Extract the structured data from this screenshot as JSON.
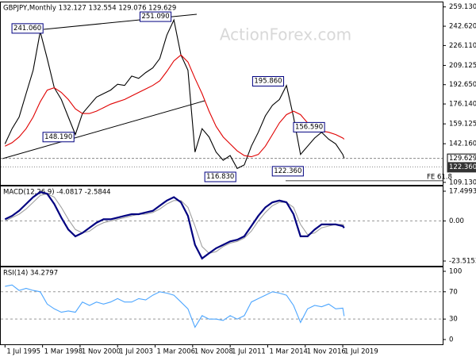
{
  "chart_data": [
    {
      "type": "line",
      "title": "GBPJPY,Monthly 132.127 132.554 129.076 129.629",
      "watermark": "ActionForex.com",
      "x": [
        1995.5,
        1996,
        1996.5,
        1997,
        1997.5,
        1998,
        1998.5,
        1999,
        1999.5,
        2000,
        2000.5,
        2001,
        2001.5,
        2002,
        2002.5,
        2003,
        2003.5,
        2004,
        2004.5,
        2005,
        2005.5,
        2006,
        2006.5,
        2007,
        2007.5,
        2008,
        2008.5,
        2009,
        2009.5,
        2010,
        2010.5,
        2011,
        2011.5,
        2012,
        2012.5,
        2013,
        2013.5,
        2014,
        2014.5,
        2015,
        2015.5,
        2016,
        2016.5,
        2017,
        2017.5,
        2018,
        2018.5,
        2019,
        2019.5,
        2019.6
      ],
      "series": [
        {
          "color": "#000000",
          "values": [
            142,
            155,
            165,
            185,
            205,
            238,
            215,
            190,
            180,
            165,
            150,
            168,
            175,
            182,
            185,
            188,
            193,
            192,
            200,
            198,
            203,
            207,
            215,
            235,
            248,
            218,
            205,
            135,
            155,
            148,
            135,
            128,
            132,
            121,
            124,
            140,
            152,
            166,
            175,
            180,
            192,
            165,
            133,
            140,
            147,
            152,
            146,
            142,
            133,
            129.629
          ]
        },
        {
          "color": "#e00000",
          "values": [
            140,
            143,
            148,
            155,
            165,
            178,
            188,
            190,
            186,
            180,
            172,
            168,
            168,
            170,
            173,
            176,
            178,
            180,
            183,
            186,
            189,
            192,
            196,
            204,
            213,
            218,
            212,
            198,
            185,
            170,
            157,
            148,
            142,
            136,
            132,
            131,
            133,
            140,
            150,
            160,
            167,
            170,
            167,
            160,
            155,
            153,
            152,
            150,
            147,
            146
          ]
        }
      ],
      "xlim": [
        1995.2,
        2026.6
      ],
      "ylim": [
        107,
        263
      ],
      "yticks": [
        {
          "value": 259.13,
          "label": "259.130"
        },
        {
          "value": 242.62,
          "label": "242.620"
        },
        {
          "value": 226.11,
          "label": "226.110"
        },
        {
          "value": 209.125,
          "label": "209.125"
        },
        {
          "value": 192.65,
          "label": "192.650"
        },
        {
          "value": 176.14,
          "label": "176.140"
        },
        {
          "value": 159.125,
          "label": "159.125"
        },
        {
          "value": 142.16,
          "label": "142.160"
        },
        {
          "value": 109.13,
          "label": "109.130"
        }
      ],
      "levels": [
        {
          "value": 129.629,
          "label": "129.629"
        },
        {
          "value": 122.36,
          "label": "122.360"
        },
        {
          "value": 110.5,
          "label": "FE 61.8"
        }
      ],
      "annotations": [
        {
          "x": 1998.2,
          "value": 241.06,
          "label": "241.060"
        },
        {
          "x": 2007.3,
          "value": 251.09,
          "label": "251.090"
        },
        {
          "x": 2015.3,
          "value": 195.86,
          "label": "195.860"
        },
        {
          "x": 2016.0,
          "value": 156.59,
          "label": "156.590"
        },
        {
          "x": 2000.4,
          "value": 148.19,
          "label": "148.190"
        },
        {
          "x": 2016.7,
          "value": 122.36,
          "label": "122.360"
        },
        {
          "x": 2011.5,
          "value": 116.83,
          "label": "116.830"
        }
      ]
    },
    {
      "type": "line",
      "title": "MACD(12,26,9) -4.0817 -2.5844",
      "x": [
        1995.5,
        1996,
        1996.5,
        1997,
        1997.5,
        1998,
        1998.5,
        1999,
        1999.5,
        2000,
        2000.5,
        2001,
        2001.5,
        2002,
        2002.5,
        2003,
        2003.5,
        2004,
        2004.5,
        2005,
        2005.5,
        2006,
        2006.5,
        2007,
        2007.5,
        2008,
        2008.5,
        2009,
        2009.5,
        2010,
        2010.5,
        2011,
        2011.5,
        2012,
        2012.5,
        2013,
        2013.5,
        2014,
        2014.5,
        2015,
        2015.5,
        2016,
        2016.5,
        2017,
        2017.5,
        2018,
        2018.5,
        2019,
        2019.5,
        2019.6
      ],
      "series": [
        {
          "color": "#a0a0a0",
          "values": [
            0,
            2,
            4,
            7,
            11,
            15,
            16,
            14,
            8,
            1,
            -5,
            -7,
            -6,
            -3,
            -1,
            0,
            1,
            2,
            3,
            4,
            4,
            5,
            7,
            10,
            12,
            12,
            8,
            -3,
            -15,
            -19,
            -18,
            -15,
            -13,
            -12,
            -10,
            -6,
            0,
            5,
            9,
            11,
            11,
            8,
            -2,
            -8,
            -7,
            -4,
            -3,
            -2,
            -2,
            -2.5844
          ]
        },
        {
          "color": "#000080",
          "values": [
            1,
            3,
            6,
            10,
            14,
            17,
            16,
            10,
            2,
            -5,
            -9,
            -7,
            -4,
            -1,
            1,
            1,
            2,
            3,
            4,
            4,
            5,
            6,
            9,
            12,
            14,
            11,
            3,
            -14,
            -22,
            -19,
            -16,
            -14,
            -12,
            -11,
            -9,
            -3,
            3,
            8,
            11,
            12,
            11,
            4,
            -9,
            -9,
            -5,
            -2,
            -2,
            -2,
            -3,
            -4.0817
          ]
        }
      ],
      "xlim": [
        1995.2,
        2026.6
      ],
      "ylim": [
        -26.3,
        20.3
      ],
      "yticks": [
        17.4993,
        {
          "value": 0,
          "label": "0.00"
        },
        -23.5153
      ],
      "levels": [
        0
      ]
    },
    {
      "type": "line",
      "title": "RSI(14) 34.2797",
      "x": [
        1995.5,
        1996,
        1996.5,
        1997,
        1997.5,
        1998,
        1998.5,
        1999,
        1999.5,
        2000,
        2000.5,
        2001,
        2001.5,
        2002,
        2002.5,
        2003,
        2003.5,
        2004,
        2004.5,
        2005,
        2005.5,
        2006,
        2006.5,
        2007,
        2007.5,
        2008,
        2008.5,
        2009,
        2009.5,
        2010,
        2010.5,
        2011,
        2011.5,
        2012,
        2012.5,
        2013,
        2013.5,
        2014,
        2014.5,
        2015,
        2015.5,
        2016,
        2016.5,
        2017,
        2017.5,
        2018,
        2018.5,
        2019,
        2019.5,
        2019.6
      ],
      "series": [
        {
          "color": "#4da6ff",
          "values": [
            78,
            80,
            72,
            75,
            72,
            70,
            52,
            45,
            40,
            42,
            40,
            55,
            50,
            55,
            52,
            55,
            60,
            55,
            55,
            60,
            58,
            65,
            70,
            68,
            65,
            55,
            45,
            18,
            35,
            30,
            30,
            28,
            35,
            30,
            35,
            55,
            60,
            65,
            70,
            68,
            65,
            50,
            25,
            45,
            50,
            48,
            52,
            45,
            46,
            34.2797
          ]
        }
      ],
      "xlim": [
        1995.2,
        2026.6
      ],
      "ylim": [
        -7,
        105.8
      ],
      "yticks": [
        100,
        70,
        30,
        0
      ],
      "levels": [
        70,
        30
      ],
      "xticks": [
        {
          "value": 1995.5,
          "label": "1 Jul 1995"
        },
        {
          "value": 1998.167,
          "label": "1 Mar 1998"
        },
        {
          "value": 2000.833,
          "label": "1 Nov 2000"
        },
        {
          "value": 2003.5,
          "label": "1 Jul 2003"
        },
        {
          "value": 2006.167,
          "label": "1 Mar 2006"
        },
        {
          "value": 2008.833,
          "label": "1 Nov 2008"
        },
        {
          "value": 2011.5,
          "label": "1 Jul 2011"
        },
        {
          "value": 2014.167,
          "label": "1 Mar 2014"
        },
        {
          "value": 2016.833,
          "label": "1 Nov 2016"
        },
        {
          "value": 2019.5,
          "label": "1 Jul 2019"
        }
      ]
    }
  ]
}
